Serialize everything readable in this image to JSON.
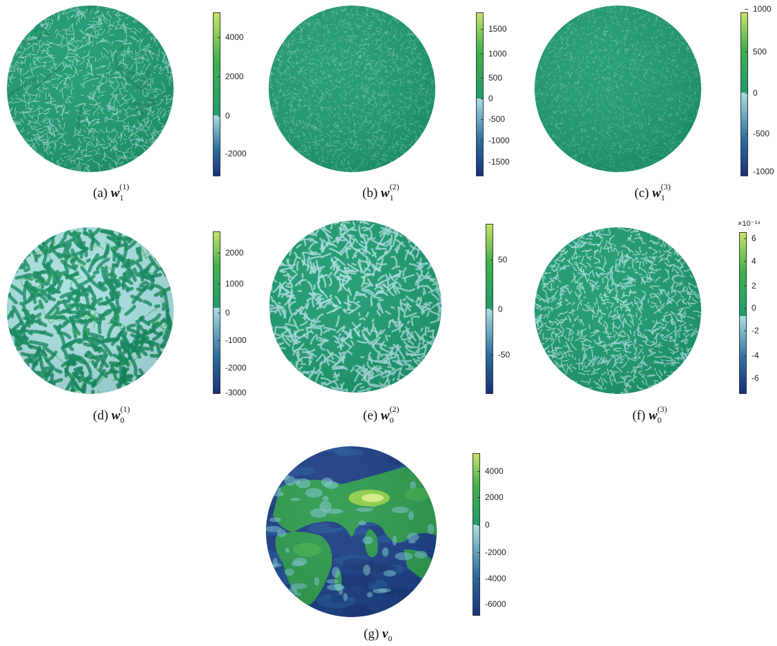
{
  "panels": [
    {
      "id": "a",
      "caption_label": "(a)",
      "symbol": "w",
      "sub": "1",
      "sup": "(1)",
      "pattern": "fine",
      "ticks": [
        "4000",
        "2000",
        "0",
        "-2000"
      ],
      "exponent": ""
    },
    {
      "id": "b",
      "caption_label": "(b)",
      "symbol": "w",
      "sub": "1",
      "sup": "(2)",
      "pattern": "finer",
      "ticks": [
        "1500",
        "1000",
        "500",
        "0",
        "-500",
        "-1000",
        "-1500"
      ],
      "exponent": ""
    },
    {
      "id": "c",
      "caption_label": "(c)",
      "symbol": "w",
      "sub": "1",
      "sup": "(3)",
      "pattern": "finest",
      "ticks": [
        "1000",
        "500",
        "0",
        "-500",
        "-1000"
      ],
      "exponent": ""
    },
    {
      "id": "d",
      "caption_label": "(d)",
      "symbol": "w",
      "sub": "0",
      "sup": "(1)",
      "pattern": "blobs",
      "ticks": [
        "2000",
        "1000",
        "0",
        "-1000",
        "-2000",
        "-3000"
      ],
      "exponent": ""
    },
    {
      "id": "e",
      "caption_label": "(e)",
      "symbol": "w",
      "sub": "0",
      "sup": "(2)",
      "pattern": "worms",
      "ticks": [
        "50",
        "0",
        "-50"
      ],
      "exponent": ""
    },
    {
      "id": "f",
      "caption_label": "(f)",
      "symbol": "w",
      "sub": "0",
      "sup": "(3)",
      "pattern": "fineworms",
      "ticks": [
        "6",
        "4",
        "2",
        "0",
        "-2",
        "-4",
        "-6"
      ],
      "exponent": "×10⁻¹⁴"
    },
    {
      "id": "g",
      "caption_label": "(g)",
      "symbol": "v",
      "sub": "0",
      "sup": "",
      "pattern": "earth",
      "ticks": [
        "4000",
        "2000",
        "0",
        "-2000",
        "-4000",
        "-6000"
      ],
      "exponent": ""
    }
  ],
  "colors": {
    "base_green": "#1f9a6e",
    "light_cyan": "#a9dfe0",
    "deep_blue": "#18317a",
    "mid_blue": "#2c6fa0",
    "bright_green": "#3fb24a",
    "yellow_green": "#c7e36a"
  }
}
